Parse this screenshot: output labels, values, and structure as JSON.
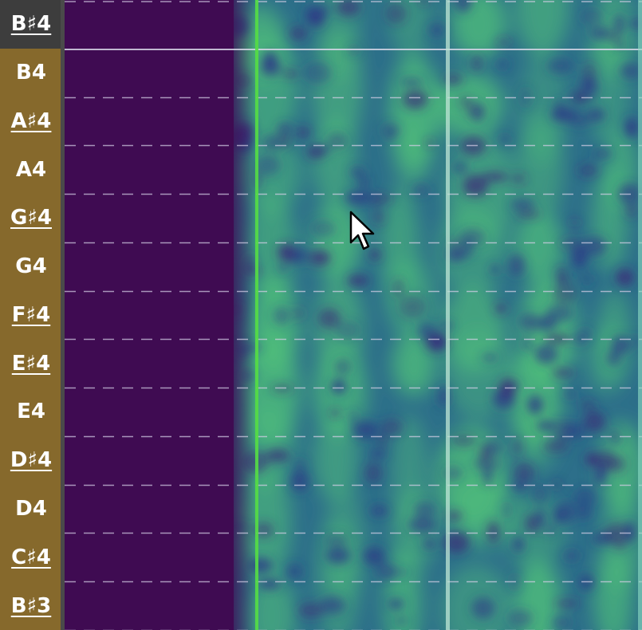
{
  "piano_roll": {
    "keys": [
      {
        "label": "B♯4",
        "sharp": true,
        "active": true
      },
      {
        "label": "B4",
        "sharp": false,
        "active": false
      },
      {
        "label": "A♯4",
        "sharp": true,
        "active": false
      },
      {
        "label": "A4",
        "sharp": false,
        "active": false
      },
      {
        "label": "G♯4",
        "sharp": true,
        "active": false
      },
      {
        "label": "G4",
        "sharp": false,
        "active": false
      },
      {
        "label": "F♯4",
        "sharp": true,
        "active": false
      },
      {
        "label": "E♯4",
        "sharp": true,
        "active": false
      },
      {
        "label": "E4",
        "sharp": false,
        "active": false
      },
      {
        "label": "D♯4",
        "sharp": true,
        "active": false
      },
      {
        "label": "D4",
        "sharp": false,
        "active": false
      },
      {
        "label": "C♯4",
        "sharp": true,
        "active": false
      },
      {
        "label": "B♯3",
        "sharp": true,
        "active": false
      }
    ]
  },
  "colors": {
    "piano_key_bg": "#86692c",
    "piano_key_active_bg": "#3d3d3d",
    "key_text": "#ffffff",
    "silence": "#3f0b52",
    "spectrogram_base": "#2d6f8a",
    "spectrogram_bright": "#4fc07a",
    "playhead": "#55dd44",
    "marker": "#bfe6d6"
  },
  "icons": {
    "cursor": "mouse-pointer-icon"
  }
}
